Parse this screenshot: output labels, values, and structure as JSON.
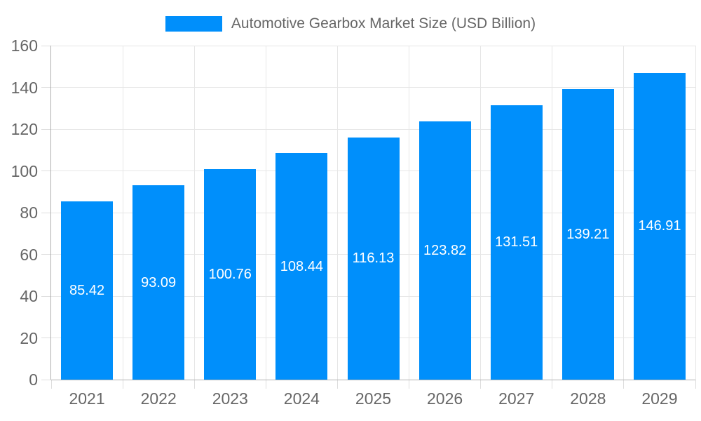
{
  "legend": {
    "label": "Automotive Gearbox Market Size (USD Billion)"
  },
  "chart_data": {
    "type": "bar",
    "title": "Automotive Gearbox Market Size (USD Billion)",
    "categories": [
      "2021",
      "2022",
      "2023",
      "2024",
      "2025",
      "2026",
      "2027",
      "2028",
      "2029"
    ],
    "series": [
      {
        "name": "Automotive Gearbox Market Size (USD Billion)",
        "values": [
          85.42,
          93.09,
          100.76,
          108.44,
          116.13,
          123.82,
          131.51,
          139.21,
          146.91
        ]
      }
    ],
    "data_labels": [
      "85.42",
      "93.09",
      "100.76",
      "108.44",
      "116.13",
      "123.82",
      "131.51",
      "139.21",
      "146.91"
    ],
    "xlabel": "",
    "ylabel": "",
    "ylim": [
      0,
      160
    ],
    "yticks": [
      0,
      20,
      40,
      60,
      80,
      100,
      120,
      140,
      160
    ],
    "grid": true,
    "legend_position": "top",
    "colors": {
      "bar": "#008FFB",
      "grid": "#e6e6e6",
      "tick": "#dedede",
      "axis": "#b0b0b0",
      "text": "#666666",
      "data_label": "#ffffff",
      "background": "#ffffff"
    }
  }
}
